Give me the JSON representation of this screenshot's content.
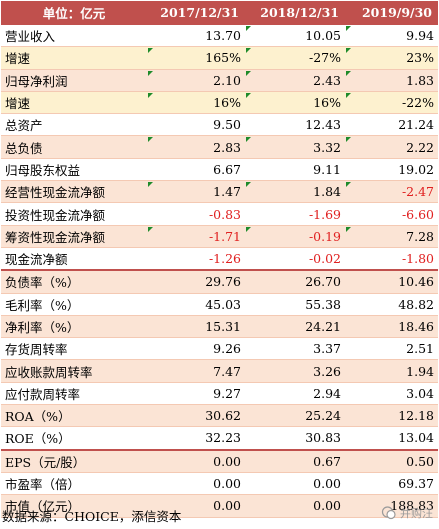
{
  "header": {
    "unit_label": "单位：亿元",
    "columns": [
      "2017/12/31",
      "2018/12/31",
      "2019/9/30"
    ]
  },
  "rows": [
    {
      "label": "营业收入",
      "values": [
        "13.70",
        "10.05",
        "9.94"
      ],
      "style": "white",
      "neg": [
        false,
        false,
        false
      ],
      "ticks": [
        false,
        true,
        true
      ]
    },
    {
      "label": "增速",
      "values": [
        "165%",
        "-27%",
        "23%"
      ],
      "style": "yellow",
      "neg": [
        false,
        false,
        false
      ],
      "ticks": [
        true,
        true,
        true
      ]
    },
    {
      "label": "归母净利润",
      "values": [
        "2.10",
        "2.43",
        "1.83"
      ],
      "style": "pink",
      "neg": [
        false,
        false,
        false
      ],
      "ticks": [
        true,
        true,
        true
      ]
    },
    {
      "label": "增速",
      "values": [
        "16%",
        "16%",
        "-22%"
      ],
      "style": "yellow",
      "neg": [
        false,
        false,
        false
      ],
      "ticks": [
        true,
        true,
        true
      ]
    },
    {
      "label": "总资产",
      "values": [
        "9.50",
        "12.43",
        "21.24"
      ],
      "style": "white",
      "neg": [
        false,
        false,
        false
      ],
      "ticks": [
        false,
        false,
        false
      ]
    },
    {
      "label": "总负债",
      "values": [
        "2.83",
        "3.32",
        "2.22"
      ],
      "style": "pink",
      "neg": [
        false,
        false,
        false
      ],
      "ticks": [
        true,
        true,
        true
      ]
    },
    {
      "label": "归母股东权益",
      "values": [
        "6.67",
        "9.11",
        "19.02"
      ],
      "style": "white",
      "neg": [
        false,
        false,
        false
      ],
      "ticks": [
        false,
        false,
        false
      ]
    },
    {
      "label": "经营性现金流净额",
      "values": [
        "1.47",
        "1.84",
        "-2.47"
      ],
      "style": "pink",
      "neg": [
        false,
        false,
        true
      ],
      "ticks": [
        true,
        true,
        true
      ]
    },
    {
      "label": "投资性现金流净额",
      "values": [
        "-0.83",
        "-1.69",
        "-6.60"
      ],
      "style": "white",
      "neg": [
        true,
        true,
        true
      ],
      "ticks": [
        false,
        false,
        false
      ]
    },
    {
      "label": "筹资性现金流净额",
      "values": [
        "-1.71",
        "-0.19",
        "7.28"
      ],
      "style": "pink",
      "neg": [
        true,
        true,
        false
      ],
      "ticks": [
        true,
        true,
        true
      ]
    },
    {
      "label": "现金流净额",
      "values": [
        "-1.26",
        "-0.02",
        "-1.80"
      ],
      "style": "white",
      "neg": [
        true,
        true,
        true
      ],
      "ticks": [
        false,
        false,
        false
      ]
    },
    {
      "label": "负债率（%）",
      "values": [
        "29.76",
        "26.70",
        "10.46"
      ],
      "style": "pink",
      "neg": [
        false,
        false,
        false
      ],
      "ticks": [
        false,
        false,
        false
      ],
      "sep": true
    },
    {
      "label": "毛利率（%）",
      "values": [
        "45.03",
        "55.38",
        "48.82"
      ],
      "style": "white",
      "neg": [
        false,
        false,
        false
      ],
      "ticks": [
        false,
        false,
        false
      ]
    },
    {
      "label": "净利率（%）",
      "values": [
        "15.31",
        "24.21",
        "18.46"
      ],
      "style": "pink",
      "neg": [
        false,
        false,
        false
      ],
      "ticks": [
        false,
        false,
        false
      ]
    },
    {
      "label": "存货周转率",
      "values": [
        "9.26",
        "3.37",
        "2.51"
      ],
      "style": "white",
      "neg": [
        false,
        false,
        false
      ],
      "ticks": [
        false,
        false,
        false
      ]
    },
    {
      "label": "应收账款周转率",
      "values": [
        "7.47",
        "3.26",
        "1.94"
      ],
      "style": "pink",
      "neg": [
        false,
        false,
        false
      ],
      "ticks": [
        false,
        false,
        false
      ]
    },
    {
      "label": "应付款周转率",
      "values": [
        "9.27",
        "2.94",
        "3.04"
      ],
      "style": "white",
      "neg": [
        false,
        false,
        false
      ],
      "ticks": [
        false,
        false,
        false
      ]
    },
    {
      "label": "ROA（%）",
      "values": [
        "30.62",
        "25.24",
        "12.18"
      ],
      "style": "pink",
      "neg": [
        false,
        false,
        false
      ],
      "ticks": [
        false,
        false,
        false
      ]
    },
    {
      "label": "ROE（%）",
      "values": [
        "32.23",
        "30.83",
        "13.04"
      ],
      "style": "white",
      "neg": [
        false,
        false,
        false
      ],
      "ticks": [
        false,
        false,
        false
      ]
    },
    {
      "label": "EPS（元/股）",
      "values": [
        "0.00",
        "0.67",
        "0.50"
      ],
      "style": "pink",
      "neg": [
        false,
        false,
        false
      ],
      "ticks": [
        false,
        false,
        false
      ],
      "sep": true
    },
    {
      "label": "市盈率（倍）",
      "values": [
        "0.00",
        "0.00",
        "69.37"
      ],
      "style": "white",
      "neg": [
        false,
        false,
        false
      ],
      "ticks": [
        false,
        false,
        false
      ]
    },
    {
      "label": "市值（亿元）",
      "values": [
        "0.00",
        "0.00",
        "188.83"
      ],
      "style": "pink",
      "neg": [
        false,
        false,
        false
      ],
      "ticks": [
        false,
        false,
        false
      ]
    }
  ],
  "footer": {
    "source": "数据来源：CHOICE，添信资本",
    "watermark": "并购汪"
  },
  "colors": {
    "header_bg": "#c0504d",
    "pink_row": "#fbe4d5",
    "yellow_row": "#fdf1cf",
    "negative": "#e02020",
    "tick_mark": "#1f8b2b"
  }
}
